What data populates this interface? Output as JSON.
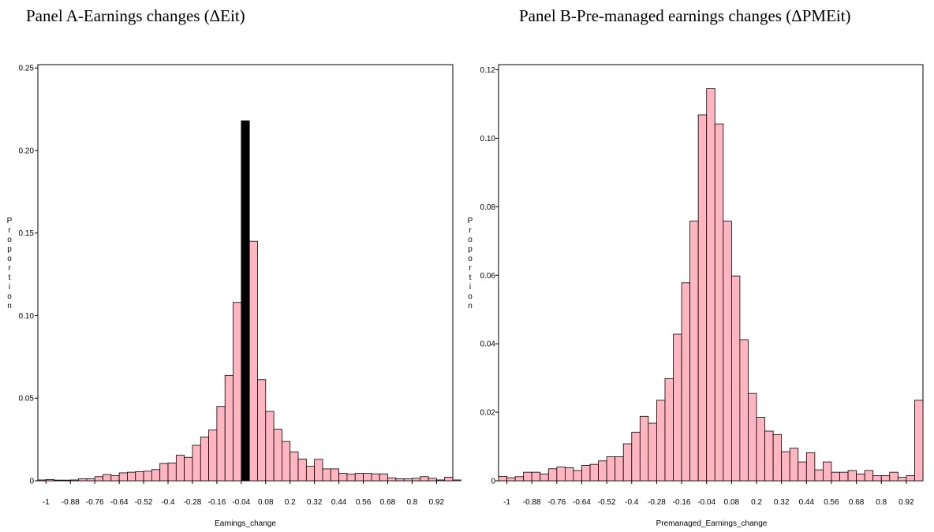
{
  "panel_a_title": "Panel A-Earnings changes (ΔEit)",
  "panel_b_title": "Panel B-Pre-managed earnings changes (ΔPMEit)",
  "colors": {
    "bar_fill": "#ffb6c1",
    "highlight_fill": "#000000",
    "bar_stroke": "#000000"
  },
  "chart_data": [
    {
      "type": "bar",
      "bin_start": -1.04,
      "bin_width": 0.04,
      "xticks": [
        "-1",
        "-0.88",
        "-0.76",
        "-0.64",
        "-0.52",
        "-0.4",
        "-0.28",
        "-0.16",
        "-0.04",
        "0.08",
        "0.2",
        "0.32",
        "0.44",
        "0.56",
        "0.68",
        "0.8",
        "0.92"
      ],
      "xtick_values": [
        -1,
        -0.88,
        -0.76,
        -0.64,
        -0.52,
        -0.4,
        -0.28,
        -0.16,
        -0.04,
        0.08,
        0.2,
        0.32,
        0.44,
        0.56,
        0.68,
        0.8,
        0.92
      ],
      "xlim": [
        -1.04,
        1.0
      ],
      "yticks": [
        "0",
        "0.05",
        "0.10",
        "0.15",
        "0.20",
        "0.25"
      ],
      "ytick_values": [
        0,
        0.05,
        0.1,
        0.15,
        0.2,
        0.25
      ],
      "ylim": [
        0,
        0.252
      ],
      "xlabel": "Earnings_change",
      "ylabel": "Proportion",
      "highlight_bin": 25,
      "values": [
        0.0005,
        0.0008,
        0.0004,
        0.0004,
        0.0005,
        0.0012,
        0.0012,
        0.0025,
        0.0038,
        0.0032,
        0.0048,
        0.0052,
        0.0055,
        0.0058,
        0.0068,
        0.0105,
        0.0108,
        0.0155,
        0.0142,
        0.0215,
        0.0265,
        0.0308,
        0.045,
        0.0638,
        0.108,
        0.218,
        0.145,
        0.0612,
        0.042,
        0.0312,
        0.0238,
        0.0175,
        0.0132,
        0.0088,
        0.013,
        0.0072,
        0.0072,
        0.0045,
        0.004,
        0.0045,
        0.0045,
        0.0042,
        0.0042,
        0.0018,
        0.0012,
        0.0012,
        0.0015,
        0.0025,
        0.0015,
        0.0005,
        0.0022,
        0.0005
      ]
    },
    {
      "type": "bar",
      "bin_start": -1.04,
      "bin_width": 0.04,
      "xticks": [
        "-1",
        "-0.88",
        "-0.76",
        "-0.64",
        "-0.52",
        "-0.4",
        "-0.28",
        "-0.16",
        "-0.04",
        "0.08",
        "0.2",
        "0.32",
        "0.44",
        "0.56",
        "0.68",
        "0.8",
        "0.92"
      ],
      "xtick_values": [
        -1,
        -0.88,
        -0.76,
        -0.64,
        -0.52,
        -0.4,
        -0.28,
        -0.16,
        -0.04,
        0.08,
        0.2,
        0.32,
        0.44,
        0.56,
        0.68,
        0.8,
        0.92
      ],
      "xlim": [
        -1.04,
        1.0
      ],
      "yticks": [
        "0",
        "0.02",
        "0.04",
        "0.06",
        "0.08",
        "0.10",
        "0.12"
      ],
      "ytick_values": [
        0,
        0.02,
        0.04,
        0.06,
        0.08,
        0.1,
        0.12
      ],
      "ylim": [
        0,
        0.1215
      ],
      "xlabel": "Premanaged_Earnings_change",
      "ylabel": "Proportion",
      "highlight_bin": null,
      "values": [
        0.0013,
        0.0009,
        0.0012,
        0.0025,
        0.0025,
        0.002,
        0.0035,
        0.004,
        0.0038,
        0.003,
        0.0045,
        0.0048,
        0.0058,
        0.007,
        0.007,
        0.0108,
        0.0142,
        0.0188,
        0.0168,
        0.0235,
        0.0298,
        0.0428,
        0.0578,
        0.0758,
        0.1068,
        0.1145,
        0.1042,
        0.0758,
        0.0598,
        0.0412,
        0.0255,
        0.0185,
        0.0145,
        0.0135,
        0.0085,
        0.0095,
        0.0055,
        0.0082,
        0.0032,
        0.0055,
        0.0025,
        0.0025,
        0.003,
        0.002,
        0.003,
        0.0015,
        0.0015,
        0.0025,
        0.001,
        0.0015,
        0.0235
      ]
    }
  ]
}
